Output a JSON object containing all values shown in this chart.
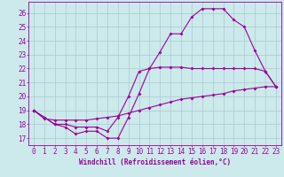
{
  "bg_color": "#cce9ec",
  "line_color": "#990099",
  "grid_color": "#aacccc",
  "xlabel": "Windchill (Refroidissement éolien,°C)",
  "ylabel_ticks": [
    17,
    18,
    19,
    20,
    21,
    22,
    23,
    24,
    25,
    26
  ],
  "xticks": [
    0,
    1,
    2,
    3,
    4,
    5,
    6,
    7,
    8,
    9,
    10,
    11,
    12,
    13,
    14,
    15,
    16,
    17,
    18,
    19,
    20,
    21,
    22,
    23
  ],
  "series1_x": [
    0,
    1,
    2,
    3,
    4,
    5,
    6,
    7,
    8,
    9,
    10,
    11,
    12,
    13,
    14,
    15,
    16,
    17,
    18,
    19,
    20,
    21,
    22,
    23
  ],
  "series1_y": [
    19.0,
    18.5,
    18.0,
    17.8,
    17.3,
    17.5,
    17.5,
    17.0,
    17.0,
    18.5,
    20.2,
    22.0,
    23.2,
    24.5,
    24.5,
    25.7,
    26.3,
    26.3,
    26.3,
    25.5,
    25.0,
    23.3,
    21.8,
    20.7
  ],
  "series2_x": [
    0,
    1,
    2,
    3,
    4,
    5,
    6,
    7,
    8,
    9,
    10,
    11,
    12,
    13,
    14,
    15,
    16,
    17,
    18,
    19,
    20,
    21,
    22,
    23
  ],
  "series2_y": [
    19.0,
    18.5,
    18.0,
    18.0,
    17.8,
    17.8,
    17.8,
    17.5,
    18.5,
    20.0,
    21.8,
    22.0,
    22.1,
    22.1,
    22.1,
    22.0,
    22.0,
    22.0,
    22.0,
    22.0,
    22.0,
    22.0,
    21.8,
    20.7
  ],
  "series3_x": [
    0,
    1,
    2,
    3,
    4,
    5,
    6,
    7,
    8,
    9,
    10,
    11,
    12,
    13,
    14,
    15,
    16,
    17,
    18,
    19,
    20,
    21,
    22,
    23
  ],
  "series3_y": [
    19.0,
    18.4,
    18.3,
    18.3,
    18.3,
    18.3,
    18.4,
    18.5,
    18.6,
    18.8,
    19.0,
    19.2,
    19.4,
    19.6,
    19.8,
    19.9,
    20.0,
    20.1,
    20.2,
    20.4,
    20.5,
    20.6,
    20.7,
    20.7
  ],
  "markersize": 2.0,
  "linewidth": 0.8,
  "xlabel_fontsize": 5.5,
  "tick_fontsize": 5.5
}
